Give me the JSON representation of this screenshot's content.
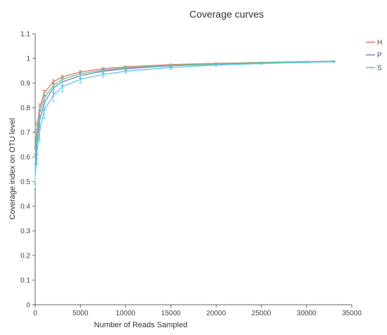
{
  "chart_data": {
    "type": "line",
    "title": "Coverage curves",
    "xlabel": "Number of Reads Sampled",
    "ylabel": "Coverage index on OTU level",
    "xlim": [
      0,
      35000
    ],
    "ylim": [
      0,
      1.1
    ],
    "x_ticks": [
      0,
      5000,
      10000,
      15000,
      20000,
      25000,
      30000,
      35000
    ],
    "y_ticks": [
      0,
      0.1,
      0.2,
      0.3,
      0.4,
      0.5,
      0.6,
      0.7,
      0.8,
      0.9,
      1,
      1.1
    ],
    "x_tick_labels": [
      "0",
      "5000",
      "10000",
      "15000",
      "20000",
      "25000",
      "30000",
      "35000"
    ],
    "y_tick_labels": [
      "0",
      "0.1",
      "0.2",
      "0.3",
      "0.4",
      "0.5",
      "0.6",
      "0.7",
      "0.8",
      "0.9",
      "1",
      "1.1"
    ],
    "legend_position": "top-right",
    "grid": false,
    "error_bars": true,
    "series": [
      {
        "name": "H",
        "color": "#e8736c",
        "x": [
          0,
          200,
          500,
          1000,
          2000,
          3000,
          5000,
          7500,
          10000,
          15000,
          20000,
          25000,
          30000,
          33000
        ],
        "y": [
          0.62,
          0.72,
          0.8,
          0.86,
          0.905,
          0.925,
          0.945,
          0.958,
          0.966,
          0.975,
          0.98,
          0.984,
          0.987,
          0.989
        ],
        "err": [
          0.02,
          0.02,
          0.015,
          0.01,
          0.008,
          0.006,
          0.005,
          0.004,
          0.003,
          0.002,
          0.002,
          0.001,
          0.001,
          0.001
        ]
      },
      {
        "name": "P",
        "color": "#7b7bdb",
        "x": [
          0,
          200,
          500,
          1000,
          2000,
          3000,
          5000,
          7500,
          10000,
          15000,
          20000,
          25000,
          30000,
          33000
        ],
        "y": [
          0.55,
          0.66,
          0.75,
          0.82,
          0.88,
          0.905,
          0.93,
          0.948,
          0.958,
          0.97,
          0.977,
          0.982,
          0.986,
          0.988
        ],
        "err": [
          0.06,
          0.05,
          0.04,
          0.03,
          0.02,
          0.015,
          0.01,
          0.008,
          0.006,
          0.004,
          0.003,
          0.002,
          0.002,
          0.002
        ]
      },
      {
        "name": "S",
        "color": "#6cc48a",
        "x": [
          0,
          200,
          500,
          1000,
          2000,
          3000,
          5000,
          7500,
          10000,
          15000,
          20000,
          25000,
          30000,
          33000
        ],
        "y": [
          0.6,
          0.7,
          0.78,
          0.84,
          0.89,
          0.915,
          0.938,
          0.952,
          0.962,
          0.972,
          0.978,
          0.983,
          0.986,
          0.988
        ],
        "err": [
          0.03,
          0.03,
          0.025,
          0.02,
          0.015,
          0.01,
          0.008,
          0.006,
          0.004,
          0.003,
          0.002,
          0.002,
          0.001,
          0.001
        ]
      },
      {
        "name": "",
        "color": "#5bc8e8",
        "x": [
          0,
          200,
          500,
          1000,
          2000,
          3000,
          5000,
          7500,
          10000,
          15000,
          20000,
          25000,
          30000,
          33000
        ],
        "y": [
          0.52,
          0.62,
          0.71,
          0.79,
          0.85,
          0.885,
          0.915,
          0.935,
          0.948,
          0.963,
          0.973,
          0.979,
          0.984,
          0.986
        ],
        "err": [
          0.05,
          0.05,
          0.045,
          0.035,
          0.025,
          0.02,
          0.015,
          0.01,
          0.008,
          0.006,
          0.004,
          0.003,
          0.002,
          0.002
        ]
      }
    ]
  }
}
